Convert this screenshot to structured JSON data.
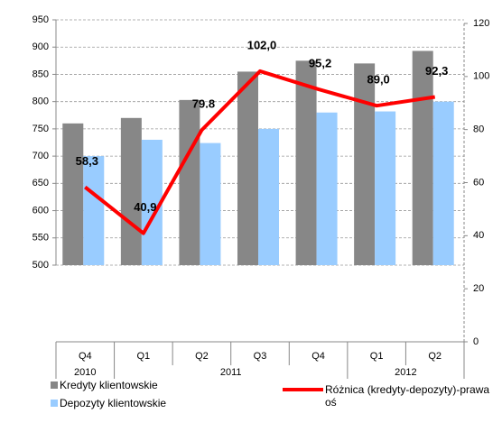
{
  "chart_data": {
    "type": "bar_line",
    "categories": [
      "Q4",
      "Q1",
      "Q2",
      "Q3",
      "Q4",
      "Q1",
      "Q2"
    ],
    "category_groups": [
      {
        "label": "2010",
        "span": 1
      },
      {
        "label": "2011",
        "span": 4
      },
      {
        "label": "2012",
        "span": 2
      }
    ],
    "series": [
      {
        "name": "Kredyty klientowskie",
        "color": "#878787",
        "values": [
          760,
          770,
          803,
          855,
          875,
          870,
          893
        ]
      },
      {
        "name": "Depozyty klientowskie",
        "color": "#99ccff",
        "values": [
          700,
          730,
          724,
          750,
          780,
          782,
          800
        ]
      },
      {
        "name": "Różnica (kredyty-depozyty)-prawa oś",
        "color": "#ff0000",
        "axis": "y2",
        "type": "line",
        "values": [
          58.3,
          40.9,
          79.8,
          102.0,
          95.2,
          89.0,
          92.3
        ],
        "value_labels": [
          "58,3",
          "40,9",
          "79.8",
          "102,0",
          "95,2",
          "89,0",
          "92,3"
        ]
      }
    ],
    "ylim": [
      500,
      950
    ],
    "yticks": [
      500,
      550,
      600,
      650,
      700,
      750,
      800,
      850,
      900,
      950
    ],
    "y2lim": [
      0,
      120
    ],
    "y2ticks": [
      0,
      20,
      40,
      60,
      80,
      100,
      120
    ],
    "grid": true
  }
}
